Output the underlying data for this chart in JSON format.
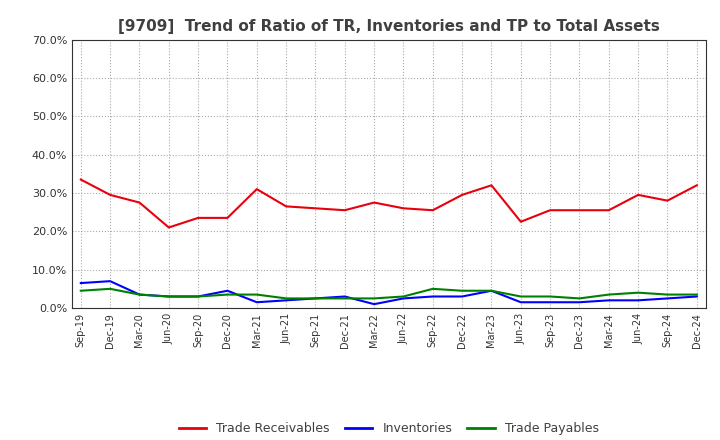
{
  "title": "[9709]  Trend of Ratio of TR, Inventories and TP to Total Assets",
  "x_labels": [
    "Sep-19",
    "Dec-19",
    "Mar-20",
    "Jun-20",
    "Sep-20",
    "Dec-20",
    "Mar-21",
    "Jun-21",
    "Sep-21",
    "Dec-21",
    "Mar-22",
    "Jun-22",
    "Sep-22",
    "Dec-22",
    "Mar-23",
    "Jun-23",
    "Sep-23",
    "Dec-23",
    "Mar-24",
    "Jun-24",
    "Sep-24",
    "Dec-24"
  ],
  "trade_receivables": [
    33.5,
    29.5,
    27.5,
    21.0,
    23.5,
    23.5,
    31.0,
    26.5,
    26.0,
    25.5,
    27.5,
    26.0,
    25.5,
    29.5,
    32.0,
    22.5,
    25.5,
    25.5,
    25.5,
    29.5,
    28.0,
    32.0
  ],
  "inventories": [
    6.5,
    7.0,
    3.5,
    3.0,
    3.0,
    4.5,
    1.5,
    2.0,
    2.5,
    3.0,
    1.0,
    2.5,
    3.0,
    3.0,
    4.5,
    1.5,
    1.5,
    1.5,
    2.0,
    2.0,
    2.5,
    3.0
  ],
  "trade_payables": [
    4.5,
    5.0,
    3.5,
    3.0,
    3.0,
    3.5,
    3.5,
    2.5,
    2.5,
    2.5,
    2.5,
    3.0,
    5.0,
    4.5,
    4.5,
    3.0,
    3.0,
    2.5,
    3.5,
    4.0,
    3.5,
    3.5
  ],
  "ylim": [
    0,
    70
  ],
  "yticks": [
    0,
    10,
    20,
    30,
    40,
    50,
    60,
    70
  ],
  "tr_color": "#e8000d",
  "inv_color": "#0000ff",
  "tp_color": "#008000",
  "bg_color": "#ffffff",
  "plot_bg_color": "#ffffff",
  "grid_color": "#aaaaaa",
  "title_color": "#404040",
  "legend_labels": [
    "Trade Receivables",
    "Inventories",
    "Trade Payables"
  ]
}
